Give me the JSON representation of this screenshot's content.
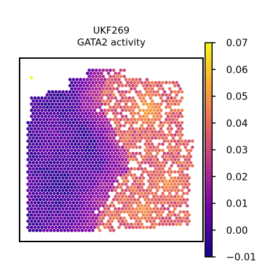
{
  "chart_data": {
    "type": "heatmap",
    "title": "UKF269",
    "subtitle": "GATA2 activity",
    "xlabel": "",
    "ylabel": "",
    "grid": false,
    "axes_ticks": false,
    "colorbar": {
      "colormap": "plasma",
      "range": [
        -0.01,
        0.07
      ],
      "ticks": [
        -0.01,
        0.0,
        0.01,
        0.02,
        0.03,
        0.04,
        0.05,
        0.06,
        0.07
      ],
      "tick_labels": [
        "−0.01",
        "0.00",
        "0.01",
        "0.02",
        "0.03",
        "0.04",
        "0.05",
        "0.06",
        "0.07"
      ]
    },
    "pattern": {
      "description_low_region": "left portion of tissue",
      "low_value": -0.005,
      "high_region": "right portion of tissue",
      "high_value": 0.04,
      "hotspots": [
        {
          "location": "upper-right",
          "value": 0.055
        },
        {
          "location": "right-middle",
          "value": 0.05
        },
        {
          "location": "lower-right",
          "value": 0.05
        }
      ],
      "max_outlier_value": 0.07
    }
  },
  "colors": {
    "plasma": [
      "#0d0887",
      "#46039f",
      "#7201a8",
      "#9c179e",
      "#bd3786",
      "#d8576b",
      "#ed7953",
      "#fb9f3a",
      "#fdca26",
      "#f0f921"
    ]
  }
}
